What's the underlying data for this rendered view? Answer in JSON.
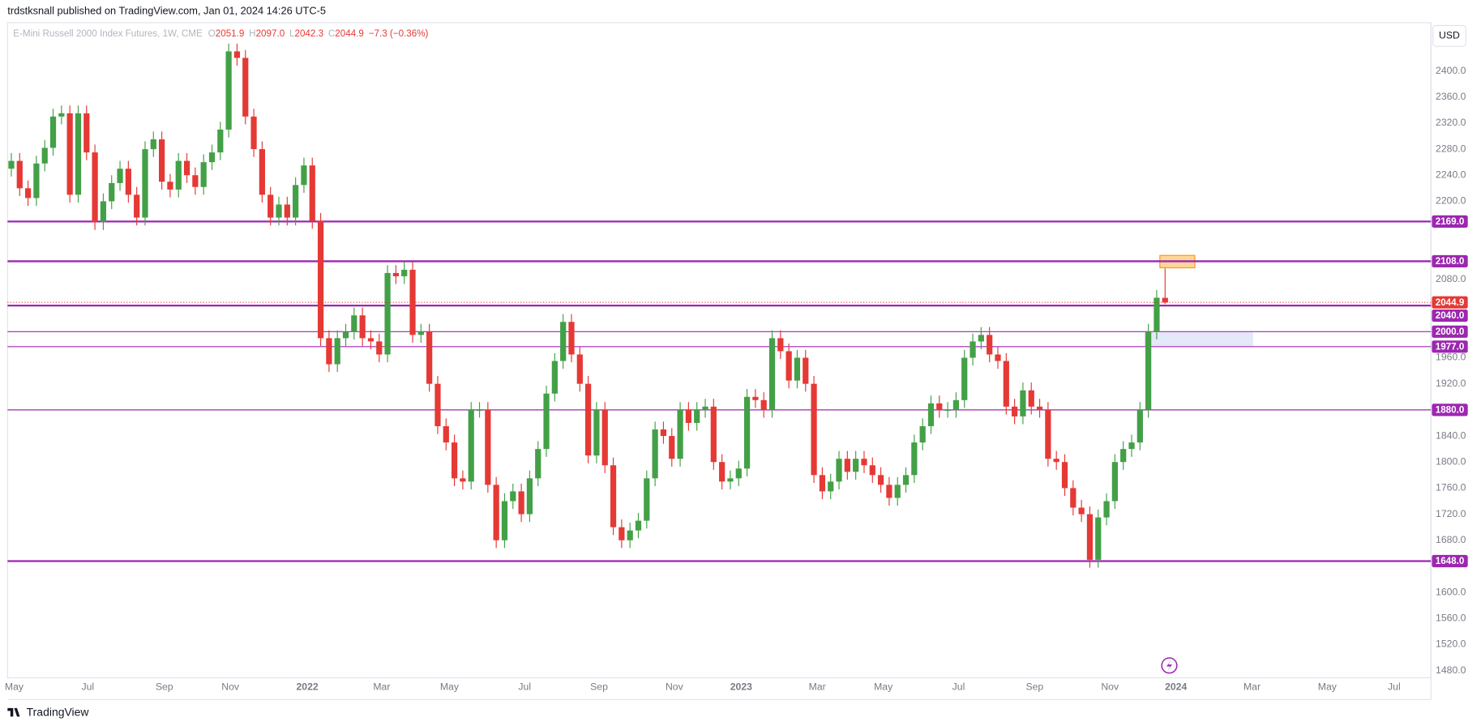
{
  "header": {
    "published": "trdstksnall published on TradingView.com, Jan 01, 2024 14:26 UTC-5"
  },
  "legend": {
    "symbol": "E-Mini Russell 2000 Index Futures, 1W, CME",
    "open_label": "O",
    "open": "2051.9",
    "high_label": "H",
    "high": "2097.0",
    "low_label": "L",
    "low": "2042.3",
    "close_label": "C",
    "close": "2044.9",
    "change": "−7.3 (−0.36%)"
  },
  "currency": "USD",
  "brand": "TradingView",
  "chart_data": {
    "type": "candlestick",
    "up_color": "#43a047",
    "down_color": "#e53935",
    "level_color": "#9c27b0",
    "open": [
      2250,
      2262,
      2220,
      2205,
      2258,
      2282,
      2330,
      2335,
      2210,
      2335,
      2275,
      2168,
      2200,
      2228,
      2250,
      2210,
      2175,
      2280,
      2295,
      2230,
      2218,
      2262,
      2240,
      2222,
      2260,
      2275,
      2310,
      2430,
      2420,
      2330,
      2280,
      2210,
      2175,
      2195,
      2175,
      2225,
      2255,
      2170,
      1990,
      1950,
      1990,
      2000,
      2025,
      1990,
      1985,
      1965,
      2090,
      2085,
      2095,
      1995,
      2000,
      1920,
      1855,
      1830,
      1775,
      1770,
      1880,
      1880,
      1765,
      1680,
      1740,
      1755,
      1720,
      1775,
      1820,
      1905,
      1955,
      2015,
      1965,
      1920,
      1810,
      1880,
      1795,
      1700,
      1680,
      1695,
      1710,
      1775,
      1850,
      1840,
      1805,
      1880,
      1860,
      1880,
      1885,
      1800,
      1770,
      1775,
      1790,
      1900,
      1895,
      1880,
      1990,
      1970,
      1925,
      1960,
      1920,
      1780,
      1755,
      1770,
      1805,
      1785,
      1805,
      1795,
      1780,
      1765,
      1745,
      1765,
      1780,
      1830,
      1855,
      1890,
      1880,
      1880,
      1895,
      1960,
      1985,
      1995,
      1965,
      1955,
      1885,
      1870,
      1910,
      1885,
      1880,
      1805,
      1800,
      1760,
      1730,
      1720,
      1650,
      1715,
      1740,
      1800,
      1820,
      1830,
      1880,
      2000,
      2051.9
    ],
    "high": [
      2274,
      2274,
      2232,
      2270,
      2294,
      2342,
      2347,
      2347,
      2347,
      2347,
      2287,
      2212,
      2240,
      2262,
      2262,
      2222,
      2292,
      2307,
      2307,
      2242,
      2274,
      2274,
      2252,
      2272,
      2287,
      2322,
      2442,
      2442,
      2432,
      2342,
      2292,
      2222,
      2207,
      2207,
      2237,
      2267,
      2267,
      2182,
      2002,
      2002,
      2012,
      2037,
      2037,
      2002,
      1997,
      2102,
      2102,
      2107,
      2107,
      2012,
      2012,
      1932,
      1867,
      1842,
      1787,
      1892,
      1892,
      1892,
      1777,
      1752,
      1767,
      1767,
      1787,
      1832,
      1917,
      1967,
      2027,
      2027,
      1977,
      1932,
      1892,
      1892,
      1807,
      1712,
      1707,
      1722,
      1787,
      1862,
      1862,
      1852,
      1892,
      1892,
      1892,
      1897,
      1897,
      1812,
      1787,
      1802,
      1912,
      1912,
      1907,
      2002,
      2002,
      1982,
      1972,
      1972,
      1932,
      1792,
      1782,
      1817,
      1817,
      1817,
      1817,
      1807,
      1792,
      1777,
      1777,
      1792,
      1842,
      1867,
      1902,
      1902,
      1892,
      1907,
      1972,
      1997,
      2007,
      2007,
      1977,
      1967,
      1897,
      1922,
      1922,
      1897,
      1892,
      1817,
      1812,
      1772,
      1742,
      1732,
      1727,
      1752,
      1812,
      1832,
      1842,
      1892,
      2012,
      2064,
      2097
    ],
    "low": [
      2238,
      2208,
      2193,
      2193,
      2246,
      2270,
      2318,
      2198,
      2198,
      2263,
      2156,
      2156,
      2188,
      2216,
      2198,
      2163,
      2163,
      2268,
      2218,
      2206,
      2206,
      2228,
      2210,
      2210,
      2248,
      2263,
      2298,
      2408,
      2318,
      2268,
      2198,
      2163,
      2163,
      2163,
      2163,
      2213,
      2158,
      1978,
      1938,
      1938,
      1978,
      1988,
      1978,
      1973,
      1953,
      1953,
      2073,
      2073,
      1983,
      1983,
      1908,
      1843,
      1818,
      1763,
      1758,
      1758,
      1868,
      1753,
      1668,
      1668,
      1728,
      1708,
      1708,
      1763,
      1808,
      1893,
      1943,
      1953,
      1908,
      1798,
      1798,
      1783,
      1688,
      1668,
      1668,
      1683,
      1698,
      1763,
      1828,
      1793,
      1793,
      1848,
      1848,
      1868,
      1788,
      1758,
      1758,
      1763,
      1778,
      1883,
      1868,
      1868,
      1958,
      1913,
      1913,
      1908,
      1768,
      1743,
      1743,
      1758,
      1773,
      1773,
      1783,
      1768,
      1753,
      1733,
      1733,
      1753,
      1768,
      1818,
      1843,
      1868,
      1868,
      1868,
      1883,
      1948,
      1973,
      1953,
      1943,
      1873,
      1858,
      1858,
      1873,
      1868,
      1793,
      1788,
      1748,
      1718,
      1708,
      1638,
      1638,
      1703,
      1728,
      1788,
      1808,
      1818,
      1868,
      1988,
      2042.3
    ],
    "close": [
      2262,
      2220,
      2205,
      2258,
      2282,
      2330,
      2335,
      2210,
      2335,
      2275,
      2168,
      2200,
      2228,
      2250,
      2210,
      2175,
      2280,
      2295,
      2230,
      2218,
      2262,
      2240,
      2222,
      2260,
      2275,
      2310,
      2430,
      2420,
      2330,
      2280,
      2210,
      2175,
      2195,
      2175,
      2225,
      2255,
      2170,
      1990,
      1950,
      1990,
      2000,
      2025,
      1990,
      1985,
      1965,
      2090,
      2085,
      2095,
      1995,
      2000,
      1920,
      1855,
      1830,
      1775,
      1770,
      1880,
      1880,
      1765,
      1680,
      1740,
      1755,
      1720,
      1775,
      1820,
      1905,
      1955,
      2015,
      1965,
      1920,
      1810,
      1880,
      1795,
      1700,
      1680,
      1695,
      1710,
      1775,
      1850,
      1840,
      1805,
      1880,
      1860,
      1880,
      1885,
      1800,
      1770,
      1775,
      1790,
      1900,
      1895,
      1880,
      1990,
      1970,
      1925,
      1960,
      1920,
      1780,
      1755,
      1770,
      1805,
      1785,
      1805,
      1795,
      1780,
      1765,
      1745,
      1765,
      1780,
      1830,
      1855,
      1890,
      1880,
      1880,
      1895,
      1960,
      1985,
      1995,
      1965,
      1955,
      1885,
      1870,
      1910,
      1885,
      1880,
      1805,
      1800,
      1760,
      1730,
      1720,
      1650,
      1715,
      1740,
      1800,
      1820,
      1830,
      1880,
      2000,
      2052,
      2044.9
    ],
    "ylim": [
      1469,
      2474
    ],
    "yticks": [
      {
        "value": 2400,
        "label": "2400.0"
      },
      {
        "value": 2360,
        "label": "2360.0"
      },
      {
        "value": 2320,
        "label": "2320.0"
      },
      {
        "value": 2280,
        "label": "2280.0"
      },
      {
        "value": 2240,
        "label": "2240.0"
      },
      {
        "value": 2200,
        "label": "2200.0"
      },
      {
        "value": 2080,
        "label": "2080.0"
      },
      {
        "value": 1960,
        "label": "1960.0"
      },
      {
        "value": 1920,
        "label": "1920.0"
      },
      {
        "value": 1840,
        "label": "1840.0"
      },
      {
        "value": 1800,
        "label": "1800.0"
      },
      {
        "value": 1760,
        "label": "1760.0"
      },
      {
        "value": 1720,
        "label": "1720.0"
      },
      {
        "value": 1680,
        "label": "1680.0"
      },
      {
        "value": 1600,
        "label": "1600.0"
      },
      {
        "value": 1560,
        "label": "1560.0"
      },
      {
        "value": 1520,
        "label": "1520.0"
      },
      {
        "value": 1480,
        "label": "1480.0"
      }
    ],
    "xlim": [
      -0.45,
      169.8
    ],
    "xticks": [
      {
        "value": 0.34,
        "label": "May"
      },
      {
        "value": 9.15,
        "label": "Jul"
      },
      {
        "value": 18.3,
        "label": "Sep"
      },
      {
        "value": 26.2,
        "label": "Nov"
      },
      {
        "value": 35.4,
        "label": "2022"
      },
      {
        "value": 44.3,
        "label": "Mar"
      },
      {
        "value": 52.4,
        "label": "May"
      },
      {
        "value": 61.4,
        "label": "Jul"
      },
      {
        "value": 70.3,
        "label": "Sep"
      },
      {
        "value": 79.3,
        "label": "Nov"
      },
      {
        "value": 87.3,
        "label": "2023"
      },
      {
        "value": 96.4,
        "label": "Mar"
      },
      {
        "value": 104.3,
        "label": "May"
      },
      {
        "value": 113.3,
        "label": "Jul"
      },
      {
        "value": 122.4,
        "label": "Sep"
      },
      {
        "value": 131.4,
        "label": "Nov"
      },
      {
        "value": 139.3,
        "label": "2024"
      },
      {
        "value": 148.4,
        "label": "Mar"
      },
      {
        "value": 157.4,
        "label": "May"
      },
      {
        "value": 165.4,
        "label": "Jul"
      }
    ],
    "levels": [
      {
        "value": 2169,
        "label": "2169.0",
        "width": 2
      },
      {
        "value": 2108,
        "label": "2108.0",
        "width": 2
      },
      {
        "value": 2040,
        "label": "2040.0",
        "width": 2
      },
      {
        "value": 2000,
        "label": "2000.0",
        "width": 1
      },
      {
        "value": 1977,
        "label": "1977.0",
        "width": 1
      },
      {
        "value": 1880,
        "label": "1880.0",
        "width": 1
      },
      {
        "value": 1648,
        "label": "1648.0",
        "width": 2
      }
    ],
    "zones": [
      {
        "top": 2117,
        "bottom": 2098,
        "color": "#ffcc80",
        "border": "#ff9800"
      },
      {
        "top": 1998,
        "bottom": 1979,
        "color": "#dde3f8",
        "border": "#dde3f8"
      }
    ]
  }
}
